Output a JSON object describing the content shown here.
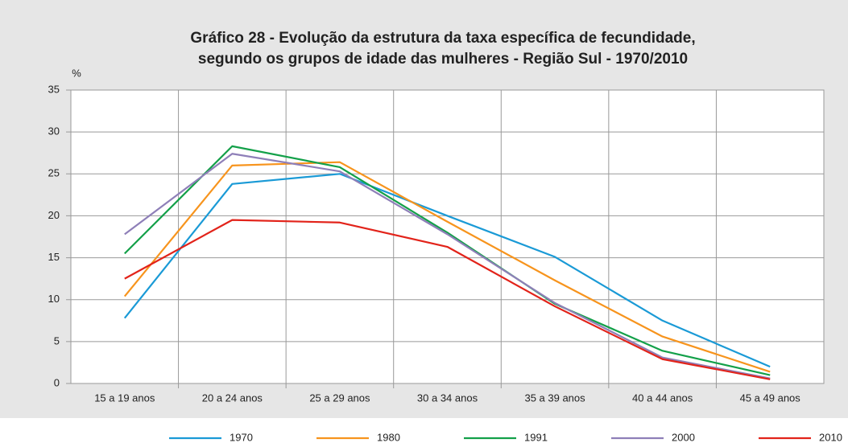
{
  "chart_data": {
    "type": "line",
    "title": [
      "Gráfico 28 - Evolução da estrutura da taxa específica de fecundidade,",
      "segundo os grupos de idade das mulheres - Região Sul - 1970/2010"
    ],
    "y_label": "%",
    "categories": [
      "15 a 19 anos",
      "20 a 24 anos",
      "25 a 29 anos",
      "30 a 34 anos",
      "35 a 39 anos",
      "40 a 44 anos",
      "45 a 49 anos"
    ],
    "series": [
      {
        "name": "1970",
        "color": "#1a9ad6",
        "values": [
          7.8,
          23.8,
          25.0,
          20.0,
          15.1,
          7.5,
          2.0
        ]
      },
      {
        "name": "1980",
        "color": "#f7941d",
        "values": [
          10.4,
          26.0,
          26.4,
          19.3,
          12.3,
          5.6,
          1.4
        ]
      },
      {
        "name": "1991",
        "color": "#13a049",
        "values": [
          15.5,
          28.3,
          25.8,
          18.0,
          9.5,
          3.9,
          1.0
        ]
      },
      {
        "name": "2000",
        "color": "#8e7fb8",
        "values": [
          17.8,
          27.4,
          25.3,
          17.8,
          9.6,
          3.1,
          0.6
        ]
      },
      {
        "name": "2010",
        "color": "#e2231a",
        "values": [
          12.5,
          19.5,
          19.2,
          16.3,
          9.2,
          2.9,
          0.5
        ]
      }
    ],
    "ylim": [
      0,
      35
    ],
    "yticks": [
      0,
      5,
      10,
      15,
      20,
      25,
      30,
      35
    ],
    "grid": true,
    "legend": "bottom"
  }
}
